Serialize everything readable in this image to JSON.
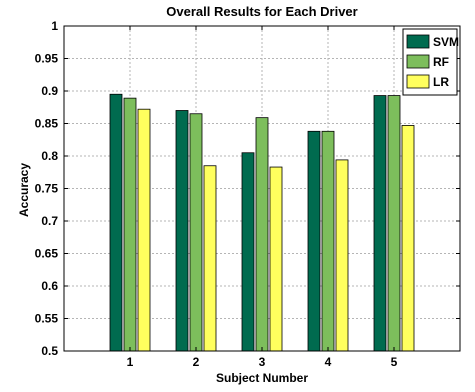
{
  "chart_data": {
    "type": "bar",
    "title": "Overall Results for Each Driver",
    "xlabel": "Subject Number",
    "ylabel": "Accuracy",
    "categories": [
      "1",
      "2",
      "3",
      "4",
      "5"
    ],
    "ylim": [
      0.5,
      1
    ],
    "yticks": [
      "0.5",
      "0.55",
      "0.6",
      "0.65",
      "0.7",
      "0.75",
      "0.8",
      "0.85",
      "0.9",
      "0.95",
      "1"
    ],
    "grid": true,
    "legend_position": "top-right",
    "series": [
      {
        "name": "SVM",
        "color": "#006b4f",
        "values": [
          0.895,
          0.87,
          0.805,
          0.838,
          0.893
        ]
      },
      {
        "name": "RF",
        "color": "#7dbe5c",
        "values": [
          0.889,
          0.865,
          0.859,
          0.838,
          0.893
        ]
      },
      {
        "name": "LR",
        "color": "#ffff5e",
        "values": [
          0.872,
          0.785,
          0.783,
          0.794,
          0.847
        ]
      }
    ]
  }
}
